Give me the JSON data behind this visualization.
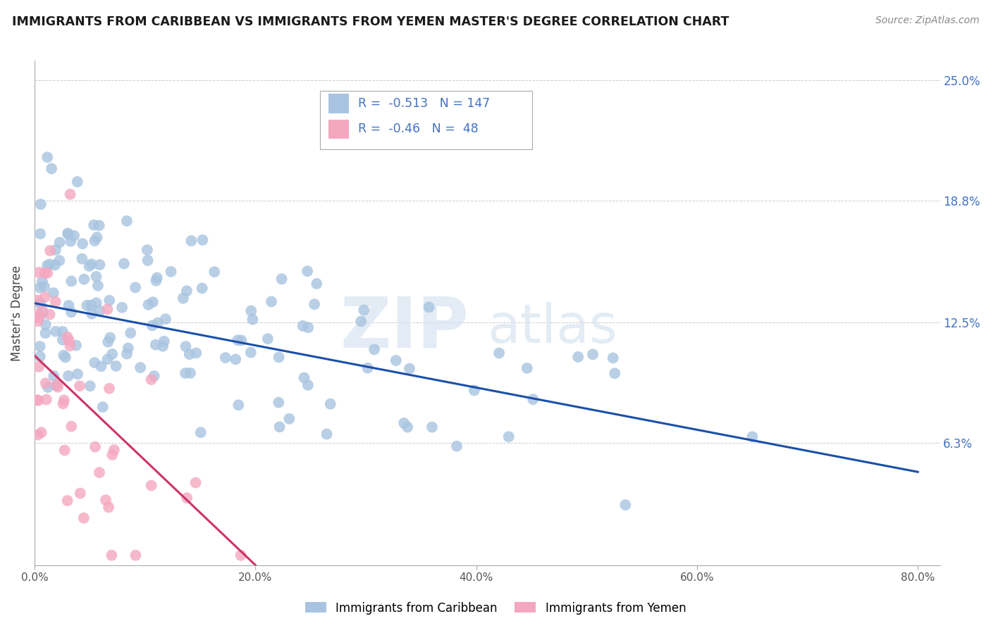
{
  "title": "IMMIGRANTS FROM CARIBBEAN VS IMMIGRANTS FROM YEMEN MASTER'S DEGREE CORRELATION CHART",
  "source": "Source: ZipAtlas.com",
  "ylabel": "Master's Degree",
  "legend_label1": "Immigrants from Caribbean",
  "legend_label2": "Immigrants from Yemen",
  "R1": -0.513,
  "N1": 147,
  "R2": -0.46,
  "N2": 48,
  "color1": "#a8c4e0",
  "color2": "#f4a8c0",
  "line_color1": "#1a4faa",
  "line_color2": "#cc3366",
  "xlim": [
    0.0,
    0.82
  ],
  "ylim": [
    0.0,
    0.26
  ],
  "yticks": [
    0.0,
    0.063,
    0.125,
    0.188,
    0.25
  ],
  "ytick_labels_right": [
    "",
    "6.3%",
    "12.5%",
    "18.8%",
    "25.0%"
  ],
  "xticks": [
    0.0,
    0.2,
    0.4,
    0.6,
    0.8
  ],
  "xtick_labels": [
    "0.0%",
    "20.0%",
    "40.0%",
    "60.0%",
    "80.0%"
  ],
  "watermark_ZIP": "ZIP",
  "watermark_atlas": "atlas",
  "background": "#ffffff",
  "grid_color": "#cccccc",
  "blue_line_x0": 0.0,
  "blue_line_y0": 0.135,
  "blue_line_x1": 0.8,
  "blue_line_y1": 0.048,
  "pink_line_x0": 0.0,
  "pink_line_y0": 0.108,
  "pink_line_x1": 0.2,
  "pink_line_y1": 0.0
}
